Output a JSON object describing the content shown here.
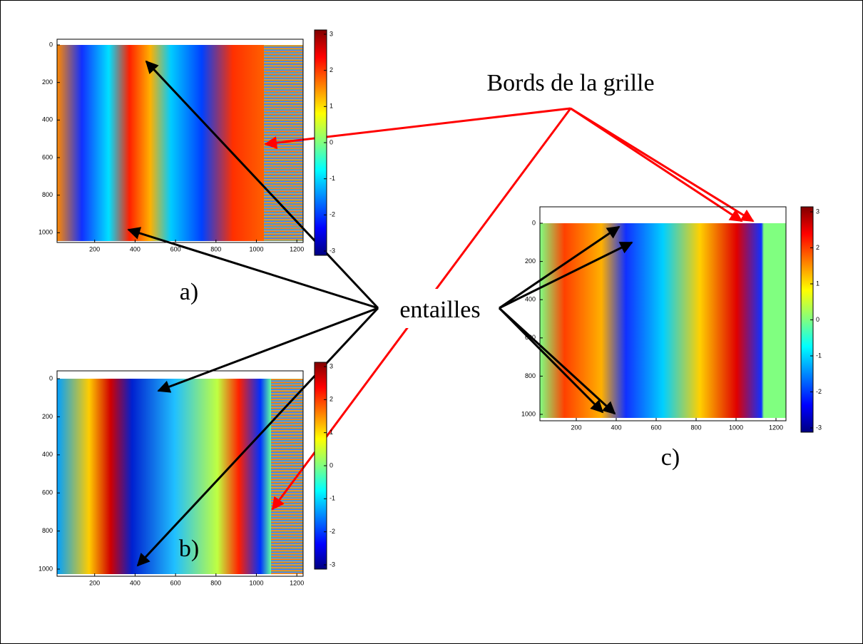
{
  "annotations": {
    "grid_edges": "Bords de la grille",
    "notches": "entailles"
  },
  "panels": [
    {
      "label": "a)",
      "xticks": [
        200,
        400,
        600,
        800,
        1000,
        1200
      ],
      "yticks": [
        0,
        200,
        400,
        600,
        800,
        1000
      ],
      "colorbar_ticks": [
        3,
        2,
        1,
        0,
        -1,
        -2,
        -3
      ]
    },
    {
      "label": "b)",
      "xticks": [
        200,
        400,
        600,
        800,
        1000,
        1200
      ],
      "yticks": [
        0,
        200,
        400,
        600,
        800,
        1000
      ],
      "colorbar_ticks": [
        3,
        2,
        1,
        0,
        -1,
        -2,
        -3
      ]
    },
    {
      "label": "c)",
      "xticks": [
        200,
        400,
        600,
        800,
        1000,
        1200
      ],
      "yticks": [
        0,
        200,
        400,
        600,
        800,
        1000
      ],
      "colorbar_ticks": [
        3,
        2,
        1,
        0,
        -1,
        -2,
        -3
      ]
    }
  ]
}
